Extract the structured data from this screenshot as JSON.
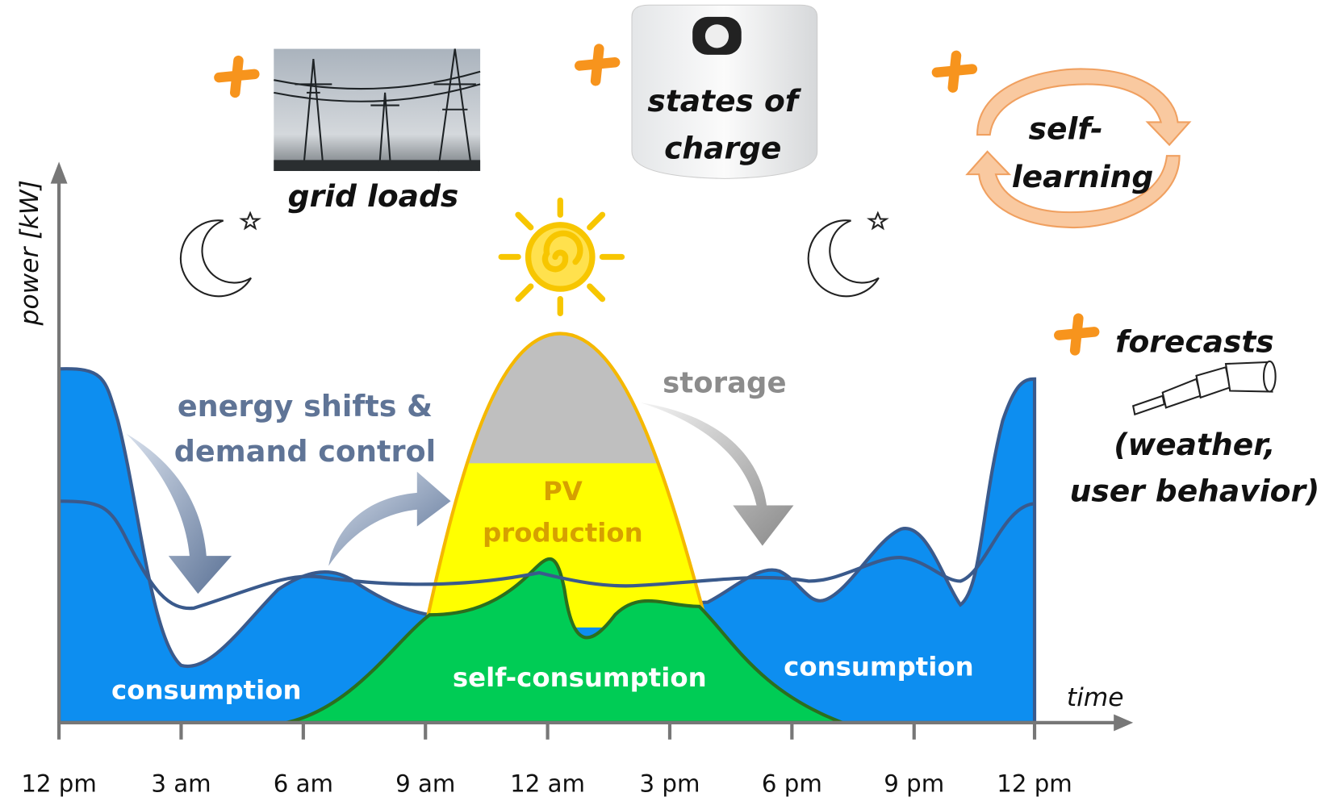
{
  "axes": {
    "y_label": "power [kW]",
    "x_label": "time",
    "x_ticks": [
      "12 pm",
      "3 am",
      "6 am",
      "9 am",
      "12 am",
      "3 pm",
      "6 pm",
      "9 pm",
      "12 pm"
    ]
  },
  "labels": {
    "consumption_left": "consumption",
    "consumption_right": "consumption",
    "self_consumption": "self-consumption",
    "pv_production": [
      "PV",
      "production"
    ],
    "storage": "storage",
    "energy_shifts": [
      "energy shifts &",
      "demand control"
    ]
  },
  "extras": {
    "grid_loads": "grid loads",
    "states_of_charge": [
      "states of",
      "charge"
    ],
    "self_learning": [
      "self-",
      "learning"
    ],
    "forecasts": "forecasts",
    "forecast_details": [
      "(weather,",
      "user behavior)"
    ]
  }
}
